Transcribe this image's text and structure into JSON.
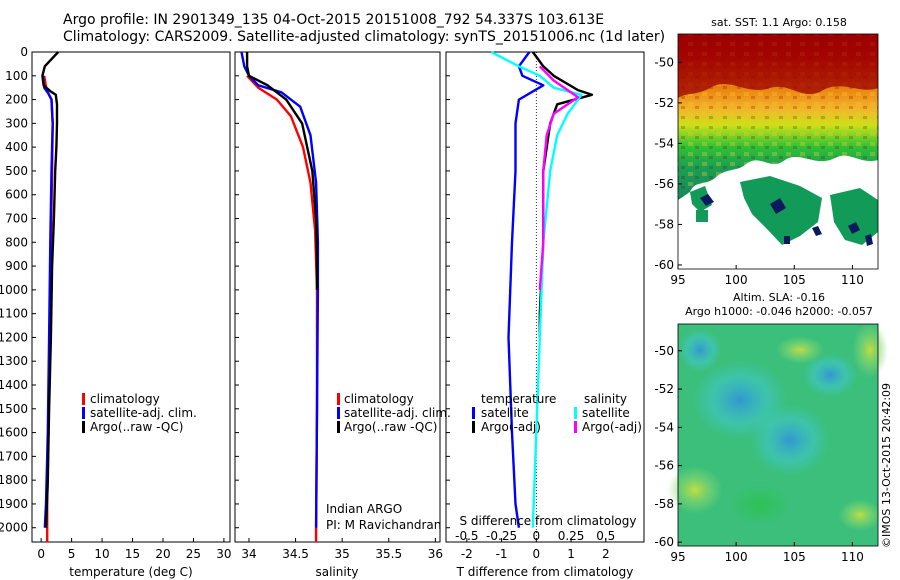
{
  "header": {
    "line1": "Argo profile: IN 2901349_135 04-Oct-2015 20151008_792 54.337S 103.613E",
    "line2": "Climatology: CARS2009. Satellite-adjusted climatology: synTS_20151006.nc (1d later)"
  },
  "credit": "©IMOS 13-Oct-2015 20:42:09",
  "colors": {
    "climatology": "#ff0000",
    "satellite": "#0000ff",
    "argo": "#000000",
    "sal_satellite": "#00ffff",
    "sal_argo": "#ff00ff"
  },
  "chart_data": [
    {
      "id": "temperature",
      "type": "line",
      "xlabel": "temperature (deg C)",
      "ylabel": "",
      "xlim": [
        -1.5,
        31
      ],
      "ylim": [
        2060,
        0
      ],
      "xticks": [
        0,
        5,
        10,
        15,
        20,
        25,
        30
      ],
      "yticks": [
        0,
        100,
        200,
        300,
        400,
        500,
        600,
        700,
        800,
        900,
        1000,
        1100,
        1200,
        1300,
        1400,
        1500,
        1600,
        1700,
        1800,
        1900,
        2000
      ],
      "legend": [
        "climatology",
        "satellite-adj. clim.",
        "Argo(..raw -QC)"
      ],
      "series": [
        {
          "name": "climatology",
          "color": "#ff0000",
          "points": [
            [
              0.5,
              100
            ],
            [
              0.9,
              160
            ],
            [
              1.7,
              200
            ],
            [
              1.9,
              300
            ],
            [
              1.8,
              500
            ],
            [
              1.6,
              800
            ],
            [
              1.4,
              1200
            ],
            [
              1.2,
              1600
            ],
            [
              1.0,
              1900
            ],
            [
              1.0,
              2000
            ],
            [
              1.0,
              2060
            ]
          ]
        },
        {
          "name": "satellite-adj. clim.",
          "color": "#0000ff",
          "points": [
            [
              0.3,
              100
            ],
            [
              0.5,
              150
            ],
            [
              1.2,
              175
            ],
            [
              1.7,
              200
            ],
            [
              1.9,
              300
            ],
            [
              1.7,
              500
            ],
            [
              1.5,
              800
            ],
            [
              1.3,
              1200
            ],
            [
              1.1,
              1600
            ],
            [
              0.8,
              1900
            ],
            [
              0.6,
              2000
            ]
          ]
        },
        {
          "name": "Argo(..raw -QC)",
          "color": "#000000",
          "points": [
            [
              2.8,
              0
            ],
            [
              0.6,
              60
            ],
            [
              0.2,
              100
            ],
            [
              0.4,
              140
            ],
            [
              1.5,
              165
            ],
            [
              2.4,
              180
            ],
            [
              2.6,
              220
            ],
            [
              2.6,
              300
            ],
            [
              2.5,
              400
            ],
            [
              2.3,
              500
            ],
            [
              2.1,
              700
            ],
            [
              1.8,
              900
            ],
            [
              1.6,
              1200
            ],
            [
              1.3,
              1500
            ],
            [
              1.1,
              1800
            ],
            [
              0.8,
              2000
            ]
          ]
        }
      ]
    },
    {
      "id": "salinity",
      "type": "line",
      "xlabel": "salinity",
      "xlim": [
        33.85,
        36.05
      ],
      "ylim": [
        2060,
        0
      ],
      "xticks": [
        34,
        34.5,
        35,
        35.5,
        36
      ],
      "legend": [
        "climatology",
        "satellite-adj. clim.",
        "Argo(..raw -QC)"
      ],
      "annotation": [
        "Indian ARGO",
        "PI: M Ravichandran"
      ],
      "series": [
        {
          "name": "climatology",
          "color": "#ff0000",
          "points": [
            [
              33.98,
              100
            ],
            [
              34.1,
              150
            ],
            [
              34.3,
              200
            ],
            [
              34.45,
              270
            ],
            [
              34.58,
              400
            ],
            [
              34.66,
              550
            ],
            [
              34.71,
              750
            ],
            [
              34.73,
              1000
            ],
            [
              34.73,
              1500
            ],
            [
              34.72,
              2000
            ],
            [
              34.72,
              2060
            ]
          ]
        },
        {
          "name": "satellite-adj. clim.",
          "color": "#0000ff",
          "points": [
            [
              33.92,
              0
            ],
            [
              33.95,
              60
            ],
            [
              34.0,
              100
            ],
            [
              34.1,
              140
            ],
            [
              34.35,
              170
            ],
            [
              34.55,
              230
            ],
            [
              34.66,
              350
            ],
            [
              34.72,
              550
            ],
            [
              34.74,
              800
            ],
            [
              34.74,
              1000
            ],
            [
              34.73,
              1500
            ],
            [
              34.72,
              2000
            ]
          ]
        },
        {
          "name": "Argo(..raw -QC)",
          "color": "#000000",
          "points": [
            [
              33.98,
              0
            ],
            [
              33.98,
              60
            ],
            [
              34.0,
              100
            ],
            [
              34.2,
              140
            ],
            [
              34.4,
              200
            ],
            [
              34.57,
              300
            ],
            [
              34.68,
              500
            ],
            [
              34.72,
              700
            ],
            [
              34.73,
              900
            ],
            [
              34.73,
              1000
            ]
          ]
        }
      ]
    },
    {
      "id": "difference",
      "type": "line",
      "xlabel": "T difference from climatology",
      "x2label": "S difference from climatology",
      "xlim": [
        -2.6,
        3.1
      ],
      "ylim": [
        2060,
        0
      ],
      "xticks": [
        -2,
        -1,
        0,
        1,
        2
      ],
      "x2ticks": [
        "-0.5",
        "-0.25",
        "0",
        "0.25",
        "0.5"
      ],
      "legend_headers": [
        "temperature",
        "salinity"
      ],
      "legend": [
        "satellite",
        "Argo(-adj)",
        "satellite",
        "Argo(-adj)"
      ],
      "series": [
        {
          "name": "T satellite",
          "color": "#0000ff",
          "points": [
            [
              -0.2,
              0
            ],
            [
              -0.5,
              60
            ],
            [
              -0.4,
              100
            ],
            [
              0.2,
              140
            ],
            [
              -0.5,
              200
            ],
            [
              -0.6,
              300
            ],
            [
              -0.6,
              500
            ],
            [
              -0.7,
              800
            ],
            [
              -0.8,
              1200
            ],
            [
              -0.7,
              1600
            ],
            [
              -0.6,
              1900
            ],
            [
              -0.5,
              2000
            ]
          ]
        },
        {
          "name": "T Argo(-adj)",
          "color": "#000000",
          "points": [
            [
              -0.1,
              0
            ],
            [
              0.2,
              60
            ],
            [
              0.5,
              100
            ],
            [
              1.2,
              160
            ],
            [
              1.6,
              180
            ],
            [
              0.6,
              220
            ],
            [
              0.4,
              300
            ],
            [
              0.2,
              500
            ],
            [
              0.2,
              800
            ],
            [
              0.1,
              1100
            ],
            [
              0.1,
              1200
            ]
          ]
        },
        {
          "name": "S satellite",
          "color": "#00ffff",
          "points": [
            [
              -1.3,
              0
            ],
            [
              -0.5,
              60
            ],
            [
              0.1,
              100
            ],
            [
              0.5,
              150
            ],
            [
              1.3,
              180
            ],
            [
              0.9,
              260
            ],
            [
              0.6,
              350
            ],
            [
              0.4,
              500
            ],
            [
              0.2,
              800
            ],
            [
              0.1,
              1200
            ],
            [
              0,
              1600
            ],
            [
              -0.1,
              2000
            ]
          ]
        },
        {
          "name": "S Argo(-adj)",
          "color": "#ff00ff",
          "points": [
            [
              0.1,
              60
            ],
            [
              0.5,
              120
            ],
            [
              1.2,
              190
            ],
            [
              0.5,
              260
            ],
            [
              0.3,
              350
            ],
            [
              0.2,
              500
            ],
            [
              0.2,
              800
            ],
            [
              0.1,
              1000
            ]
          ]
        }
      ]
    },
    {
      "id": "sst-map",
      "type": "heatmap",
      "title": "sat. SST: 1.1  Argo: 0.158",
      "xticks": [
        95,
        100,
        105,
        110
      ],
      "yticks": [
        -50,
        -52,
        -54,
        -56,
        -58,
        -60
      ]
    },
    {
      "id": "sla-map",
      "type": "heatmap",
      "title": "Altim. SLA: -0.16",
      "subtitle": "Argo h1000: -0.046 h2000: -0.057",
      "xticks": [
        95,
        100,
        105,
        110
      ],
      "yticks": [
        -50,
        -52,
        -54,
        -56,
        -58,
        -60
      ]
    }
  ]
}
